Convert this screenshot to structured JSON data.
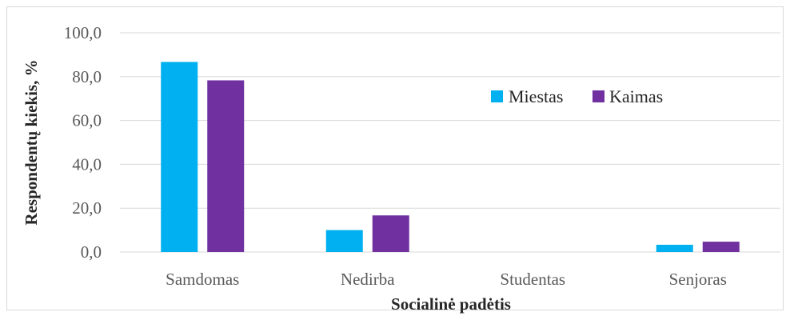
{
  "chart_data": {
    "type": "bar",
    "categories": [
      "Samdomas",
      "Nedirba",
      "Studentas",
      "Senjoras"
    ],
    "series": [
      {
        "name": "Miestas",
        "values": [
          86.7,
          10.0,
          0.0,
          3.3
        ],
        "color": "#00b0f0"
      },
      {
        "name": "Kaimas",
        "values": [
          78.3,
          16.7,
          0.0,
          4.7
        ],
        "color": "#7030a0"
      }
    ],
    "yticks": [
      "0,0",
      "20,0",
      "40,0",
      "60,0",
      "80,0",
      "100,0"
    ],
    "ytick_values": [
      0,
      20,
      40,
      60,
      80,
      100
    ],
    "ylim": [
      0,
      100
    ],
    "xlabel": "Socialinė padėtis",
    "ylabel": "Respondentų kiekis, %",
    "legend_position": "top-right",
    "grid": true,
    "gridline_color": "#d9d9d9"
  }
}
